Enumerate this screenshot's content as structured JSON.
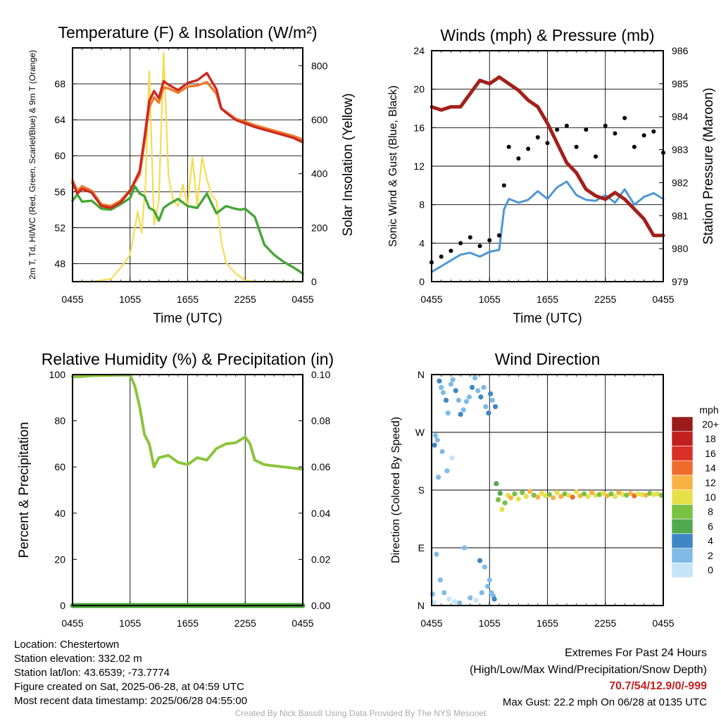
{
  "chart_data": [
    {
      "type": "line",
      "title": "Temperature (F) & Insolation (W/m²)",
      "xlabel": "Time (UTC)",
      "ylabel_left": "2m T, Td, HI/WC (Red, Green, Scarlet/Blue) & 9m T (Orange)",
      "ylabel_right": "Solar Insolation (Yellow)",
      "x_ticks": [
        "0455",
        "1055",
        "1655",
        "2255",
        "0455"
      ],
      "y_left_ticks": [
        48,
        52,
        56,
        60,
        64,
        68
      ],
      "y_right_ticks": [
        0,
        200,
        400,
        600,
        800
      ],
      "ylim_left": [
        46,
        72
      ],
      "ylim_right": [
        0,
        866
      ],
      "x_hours": [
        0,
        24
      ],
      "grid": true,
      "series": [
        {
          "name": "Red",
          "axis": "left",
          "color": "#cc2a1f",
          "x": [
            0,
            0.5,
            1,
            2,
            3,
            4,
            5,
            6,
            7,
            7.5,
            8,
            8.5,
            9,
            9.5,
            10,
            11,
            12,
            13,
            14,
            15,
            15.5,
            16,
            17,
            18,
            19,
            20,
            21,
            22,
            23,
            24
          ],
          "y": [
            57.0,
            55.8,
            56.3,
            55.9,
            54.4,
            54.2,
            54.8,
            56.1,
            58.3,
            62.0,
            66.1,
            67.2,
            66.4,
            68.3,
            67.9,
            67.3,
            68.1,
            68.4,
            69.2,
            67.4,
            65.3,
            64.8,
            64.0,
            63.6,
            63.2,
            62.9,
            62.6,
            62.3,
            62.0,
            61.5
          ]
        },
        {
          "name": "Orange",
          "axis": "left",
          "color": "#ee7b2b",
          "x": [
            0,
            0.5,
            1,
            2,
            3,
            4,
            5,
            6,
            7,
            7.5,
            8,
            8.5,
            9,
            9.5,
            10,
            11,
            12,
            13,
            14,
            15,
            15.5,
            16,
            17,
            18,
            19,
            20,
            21,
            22,
            23,
            24
          ],
          "y": [
            57.3,
            56.1,
            56.6,
            56.1,
            54.6,
            54.4,
            55.0,
            56.2,
            57.9,
            61.5,
            65.4,
            66.5,
            65.9,
            67.6,
            67.5,
            67.0,
            67.7,
            67.8,
            68.2,
            66.9,
            65.2,
            64.9,
            64.1,
            63.8,
            63.4,
            63.1,
            62.8,
            62.5,
            62.2,
            61.8
          ]
        },
        {
          "name": "Green",
          "axis": "left",
          "color": "#45a636",
          "x": [
            0,
            0.5,
            1,
            2,
            3,
            4,
            5,
            6,
            6.5,
            7,
            7.5,
            8,
            8.5,
            9,
            9.5,
            10,
            11,
            12,
            13,
            14,
            15,
            16,
            17,
            17.5,
            18,
            19,
            20,
            21,
            22,
            23,
            24
          ],
          "y": [
            55.0,
            55.7,
            54.9,
            55.0,
            54.1,
            54.0,
            54.6,
            55.3,
            56.6,
            55.8,
            55.5,
            54.2,
            53.9,
            52.8,
            54.2,
            54.6,
            55.2,
            54.4,
            54.2,
            55.8,
            53.6,
            54.4,
            54.1,
            54.0,
            54.1,
            53.2,
            50.1,
            49.0,
            48.2,
            47.6,
            46.9
          ]
        },
        {
          "name": "Yellow",
          "axis": "right",
          "color": "#f5dc50",
          "x": [
            0,
            1,
            2,
            3,
            4,
            5,
            6,
            6.8,
            7.2,
            7.6,
            8,
            8.5,
            9,
            9.5,
            10,
            10.5,
            11,
            11.5,
            12,
            12.5,
            13,
            13.5,
            14,
            14.5,
            15,
            15.5,
            16,
            17,
            18,
            19,
            20,
            24
          ],
          "y": [
            0,
            0,
            0,
            5,
            10,
            50,
            100,
            260,
            180,
            360,
            780,
            210,
            300,
            850,
            390,
            300,
            280,
            360,
            280,
            460,
            280,
            460,
            380,
            320,
            300,
            150,
            70,
            30,
            5,
            0,
            0,
            0
          ]
        }
      ]
    },
    {
      "type": "line",
      "title": "Winds (mph) & Pressure (mb)",
      "xlabel": "Time (UTC)",
      "ylabel_left": "Sonic Wind & Gust (Blue, Black)",
      "ylabel_right": "Station Pressure (Maroon)",
      "x_ticks": [
        "0455",
        "1055",
        "1655",
        "2255",
        "0455"
      ],
      "y_left_ticks": [
        0,
        4,
        8,
        12,
        16,
        20,
        24
      ],
      "y_right_ticks": [
        979,
        980,
        981,
        982,
        983,
        984,
        985,
        986
      ],
      "ylim_left": [
        0,
        24
      ],
      "ylim_right": [
        979,
        986
      ],
      "x_hours": [
        0,
        24
      ],
      "grid": true,
      "series": [
        {
          "name": "Blue",
          "axis": "left",
          "color": "#4f97d4",
          "x": [
            0,
            1,
            2,
            3,
            4,
            5,
            6,
            7,
            7.5,
            8,
            9,
            10,
            11,
            12,
            13,
            14,
            15,
            16,
            17,
            18,
            19,
            20,
            21,
            22,
            23,
            24
          ],
          "y": [
            1.0,
            1.6,
            2.2,
            2.8,
            3.0,
            2.6,
            3.1,
            3.3,
            7.5,
            8.6,
            8.2,
            8.5,
            9.4,
            8.6,
            9.8,
            10.4,
            9.0,
            8.5,
            8.4,
            9.0,
            8.2,
            9.6,
            8.0,
            8.8,
            9.2,
            8.6
          ]
        },
        {
          "name": "Black",
          "axis": "left",
          "color": "#000000",
          "x": [
            0,
            1,
            2,
            3,
            4,
            5,
            6,
            7,
            7.5,
            8,
            9,
            10,
            11,
            12,
            13,
            14,
            15,
            16,
            17,
            18,
            19,
            20,
            21,
            22,
            23,
            24
          ],
          "y": [
            2.0,
            2.6,
            3.2,
            4.0,
            4.6,
            3.7,
            4.3,
            4.8,
            10.0,
            14.0,
            12.8,
            13.8,
            15.0,
            14.4,
            15.8,
            16.2,
            14.0,
            15.8,
            13.0,
            16.2,
            15.4,
            17.0,
            14.0,
            15.2,
            15.6,
            13.4
          ]
        },
        {
          "name": "Maroon",
          "axis": "right",
          "color": "#a3201a",
          "x": [
            0,
            1,
            2,
            3,
            4,
            5,
            6,
            7,
            8,
            9,
            10,
            11,
            12,
            13,
            14,
            15,
            16,
            17,
            18,
            19,
            20,
            21,
            22,
            23,
            24
          ],
          "y": [
            984.3,
            984.2,
            984.3,
            984.3,
            984.7,
            985.1,
            985.0,
            985.2,
            985.0,
            984.8,
            984.5,
            984.3,
            983.8,
            983.2,
            982.6,
            982.3,
            981.8,
            981.6,
            981.5,
            981.7,
            981.5,
            981.2,
            980.9,
            980.4,
            980.4
          ]
        }
      ]
    },
    {
      "type": "line",
      "title": "Relative Humidity (%) & Precipitation (in)",
      "xlabel": "",
      "ylabel_left": "Percent & Precipitation",
      "x_ticks": [
        "0455",
        "1055",
        "1655",
        "2255",
        "0455"
      ],
      "y_left_ticks": [
        0,
        20,
        40,
        60,
        80,
        100
      ],
      "y_right_ticks": [
        "0.00",
        "0.02",
        "0.04",
        "0.06",
        "0.08",
        "0.10"
      ],
      "ylim_left": [
        0,
        100
      ],
      "ylim_right": [
        0,
        0.1
      ],
      "x_hours": [
        0,
        24
      ],
      "grid": true,
      "series": [
        {
          "name": "RH",
          "axis": "left",
          "color": "#8cc43c",
          "x": [
            0,
            1,
            2,
            3,
            4,
            5,
            6,
            6.5,
            7,
            7.5,
            8,
            8.5,
            9,
            10,
            11,
            12,
            13,
            14,
            15,
            16,
            17,
            18,
            18.5,
            19,
            20,
            21,
            22,
            23,
            24
          ],
          "y": [
            99.0,
            99.2,
            99.5,
            99.6,
            99.7,
            99.8,
            99.8,
            95.0,
            86.0,
            74.0,
            70.0,
            60.0,
            64.0,
            65.0,
            62.0,
            61.0,
            64.0,
            63.0,
            68.0,
            70.0,
            70.5,
            73.0,
            70.0,
            63.0,
            61.0,
            60.5,
            60.0,
            59.5,
            59.0
          ]
        },
        {
          "name": "Precip",
          "axis": "right",
          "color": "#45a636",
          "x": [
            0,
            24
          ],
          "y": [
            0,
            0
          ]
        }
      ]
    },
    {
      "type": "scatter",
      "title": "Wind Direction",
      "ylabel_left": "Direction (Colored By Speed)",
      "x_ticks": [
        "0455",
        "1055",
        "1655",
        "2255",
        "0455"
      ],
      "y_ticks": [
        "N",
        "E",
        "S",
        "W",
        "N"
      ],
      "ylim": [
        0,
        360
      ],
      "x_hours": [
        0,
        24
      ],
      "grid": true,
      "colorbar": {
        "unit": "mph",
        "labels": [
          "0",
          "2",
          "4",
          "6",
          "8",
          "10",
          "12",
          "14",
          "16",
          "18",
          "20+"
        ],
        "colors": [
          "#c5e4f7",
          "#7fbbe6",
          "#3f86c5",
          "#4fa94e",
          "#7ac142",
          "#e6e04b",
          "#f7b342",
          "#ef6b2b",
          "#d93027",
          "#c1211e",
          "#9b1b1a"
        ]
      },
      "points": {
        "x": [
          0.1,
          0.2,
          0.4,
          0.6,
          0.8,
          1.0,
          1.2,
          1.5,
          1.7,
          2.0,
          2.2,
          2.5,
          2.8,
          3.0,
          3.3,
          3.6,
          3.9,
          4.2,
          4.5,
          4.8,
          5.1,
          5.4,
          5.6,
          5.9,
          6.1,
          6.3,
          6.6,
          0.5,
          0.9,
          1.3,
          1.8,
          2.4,
          2.9,
          3.4,
          4.0,
          4.6,
          5.2,
          5.8,
          6.4,
          0.3,
          0.7,
          1.1,
          1.6,
          2.1,
          5.0,
          5.5,
          6.0,
          6.2,
          6.5,
          6.7,
          6.9,
          7.1,
          7.3,
          7.6,
          7.9,
          8.2,
          8.6,
          9.0,
          9.4,
          9.8,
          10.2,
          10.6,
          11.0,
          11.4,
          11.8,
          12.2,
          12.6,
          13.0,
          13.4,
          13.8,
          14.2,
          14.6,
          15.0,
          15.4,
          15.8,
          16.2,
          16.6,
          17.0,
          17.4,
          17.8,
          18.2,
          18.6,
          19.0,
          19.4,
          19.8,
          20.2,
          20.6,
          21.0,
          21.4,
          21.8,
          22.2,
          22.6,
          23.0,
          23.4,
          23.8
        ],
        "y": [
          18,
          5,
          265,
          258,
          350,
          340,
          332,
          320,
          300,
          345,
          352,
          335,
          320,
          298,
          305,
          318,
          325,
          340,
          355,
          335,
          325,
          340,
          310,
          300,
          330,
          320,
          310,
          80,
          40,
          20,
          10,
          6,
          4,
          90,
          12,
          8,
          20,
          30,
          15,
          250,
          200,
          240,
          210,
          230,
          70,
          60,
          40,
          20,
          10,
          190,
          165,
          175,
          150,
          160,
          172,
          168,
          174,
          166,
          176,
          170,
          178,
          172,
          169,
          175,
          171,
          173,
          168,
          176,
          170,
          174,
          172,
          169,
          177,
          171,
          174,
          170,
          176,
          172,
          173,
          175,
          171,
          174,
          170,
          176,
          173,
          172,
          175,
          171,
          174,
          173,
          172,
          175,
          173,
          174,
          172
        ],
        "speed": [
          1,
          0,
          2,
          1,
          3,
          2,
          1,
          3,
          2,
          1,
          2,
          3,
          2,
          3,
          2,
          1,
          2,
          3,
          2,
          2,
          3,
          2,
          1,
          3,
          4,
          2,
          3,
          2,
          1,
          1,
          0,
          0,
          1,
          2,
          1,
          0,
          1,
          2,
          1,
          3,
          1,
          2,
          1,
          0,
          3,
          2,
          1,
          2,
          4,
          5,
          8,
          6,
          10,
          7,
          9,
          11,
          8,
          10,
          7,
          9,
          12,
          8,
          11,
          10,
          9,
          7,
          12,
          9,
          11,
          8,
          10,
          13,
          9,
          12,
          8,
          10,
          11,
          9,
          7,
          10,
          12,
          8,
          9,
          11,
          10,
          8,
          12,
          14,
          9,
          10,
          11,
          8,
          10,
          9,
          8
        ]
      }
    }
  ],
  "footer": {
    "location": "Location: Chestertown",
    "elevation": "Station elevation: 332.02 m",
    "latlon": "Station lat/lon: 43.6539; -73.7774",
    "created": "Figure created on Sat, 2025-06-28, at 04:59 UTC",
    "recent": "Most recent data timestamp: 2025/06/28 04:55:00",
    "extremes_title": "Extremes For Past 24 Hours",
    "extremes_legend": "(High/Low/Max Wind/Precipitation/Snow Depth)",
    "extremes_values": "70.7/54/12.9/0/-999",
    "extremes_color": "#c1211e",
    "max_gust": "Max Gust: 22.2 mph On 06/28 at 0135 UTC",
    "credit": "Created By Nick Bassill Using Data Provided By The NYS Mesonet"
  }
}
